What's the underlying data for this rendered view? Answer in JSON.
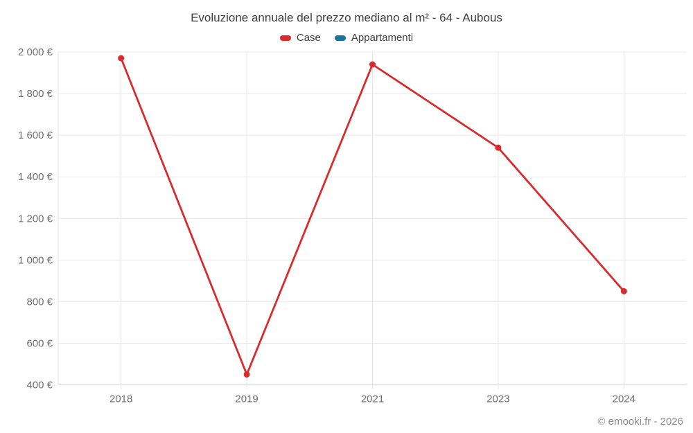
{
  "header": {
    "title": "Evoluzione annuale del prezzo mediano al m² - 64 - Aubous"
  },
  "legend": {
    "items": [
      {
        "label": "Case",
        "color": "#da2a2b"
      },
      {
        "label": "Appartamenti",
        "color": "#1c71a1"
      }
    ]
  },
  "footer": {
    "copyright": "© emooki.fr - 2026"
  },
  "chart_data": {
    "type": "line",
    "title": "Evoluzione annuale del prezzo mediano al m² - 64 - Aubous",
    "categories": [
      "2018",
      "2019",
      "2021",
      "2023",
      "2024"
    ],
    "series": [
      {
        "name": "Case",
        "color": "#da2a2b",
        "values": [
          1970,
          450,
          1940,
          1540,
          850
        ]
      },
      {
        "name": "Appartamenti",
        "color": "#1c71a1",
        "values": [
          null,
          null,
          null,
          null,
          null
        ]
      }
    ],
    "xlabel": "",
    "ylabel": "",
    "ylim": [
      400,
      2000
    ],
    "ytick_step": 200,
    "ytick_suffix": " €",
    "grid": true,
    "legend_position": "top",
    "marker": "circle",
    "annotations": []
  }
}
